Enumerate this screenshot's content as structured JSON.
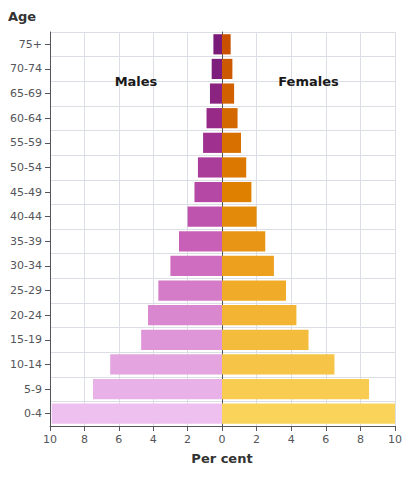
{
  "chart_data": {
    "type": "bar",
    "orientation": "horizontal",
    "xlabel": "Per cent",
    "ylabel": "Age",
    "categories": [
      "75+",
      "70-74",
      "65-69",
      "60-64",
      "55-59",
      "50-54",
      "45-49",
      "40-44",
      "35-39",
      "30-34",
      "25-29",
      "20-24",
      "15-19",
      "10-14",
      "5-9",
      "0-4"
    ],
    "series": [
      {
        "name": "Males",
        "values": [
          0.5,
          0.6,
          0.7,
          0.9,
          1.1,
          1.4,
          1.6,
          2.0,
          2.5,
          3.0,
          3.7,
          4.3,
          4.7,
          6.5,
          7.5,
          9.9
        ],
        "colors": [
          "#7a1a78",
          "#7e1e7c",
          "#8a2480",
          "#962a86",
          "#a03090",
          "#aa3c9a",
          "#b448a4",
          "#be54ae",
          "#c860b8",
          "#cf6ec0",
          "#d47cc8",
          "#d988d0",
          "#de96d8",
          "#e3a4e0",
          "#e8b2e8",
          "#edc0f0"
        ]
      },
      {
        "name": "Females",
        "values": [
          0.5,
          0.6,
          0.7,
          0.9,
          1.1,
          1.4,
          1.7,
          2.0,
          2.5,
          3.0,
          3.7,
          4.3,
          5.0,
          6.5,
          8.5,
          10.0
        ],
        "colors": [
          "#c85000",
          "#cc5800",
          "#d06000",
          "#d46800",
          "#d87000",
          "#dc7800",
          "#e08000",
          "#e48a0a",
          "#e89414",
          "#eca01e",
          "#f0ac28",
          "#f2b432",
          "#f4bc3c",
          "#f6c446",
          "#f8cc50",
          "#fad45a"
        ]
      }
    ],
    "xlim": [
      0,
      10
    ],
    "xticks": [
      0,
      2,
      4,
      6,
      8,
      10
    ],
    "grid": true
  }
}
